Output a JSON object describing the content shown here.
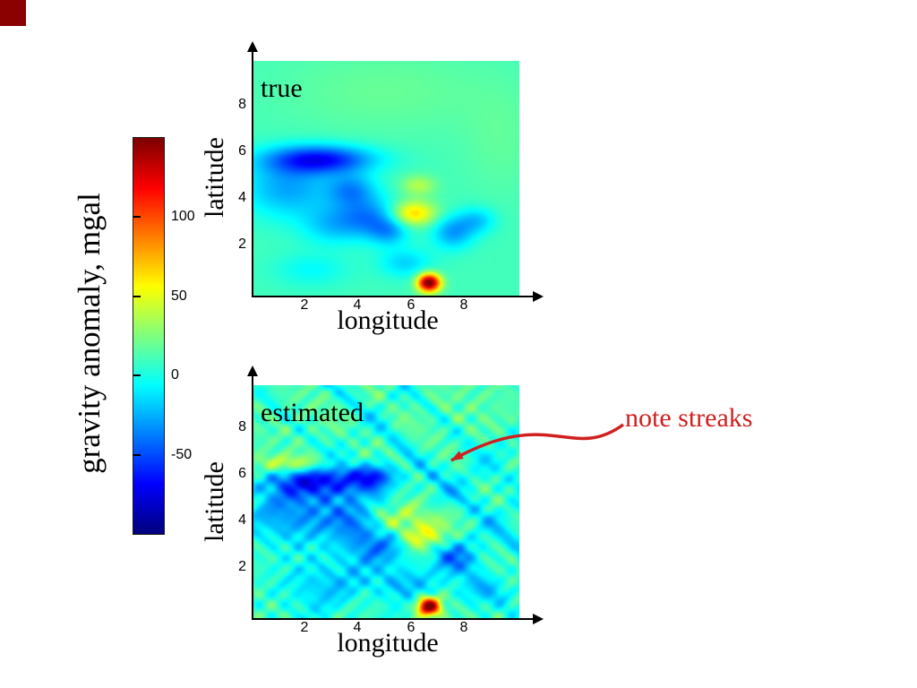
{
  "slide": {
    "background_color": "#ffffff",
    "corner_square_color": "#8b0000"
  },
  "colorbar": {
    "label": "gravity anomaly, mgal",
    "colormap": "jet",
    "value_range": [
      -100,
      150
    ],
    "ticks": [
      "100",
      "50",
      "0",
      "-50"
    ]
  },
  "annotation": {
    "text": "note streaks",
    "color": "#d01f1f"
  },
  "chart_data": [
    {
      "type": "heatmap",
      "title": "true",
      "xlabel": "longitude",
      "ylabel": "latitude",
      "xlim": [
        0,
        10
      ],
      "ylim": [
        0,
        10
      ],
      "xticks": [
        2,
        4,
        6,
        8
      ],
      "yticks": [
        2,
        4,
        6,
        8
      ],
      "colormap": "jet",
      "value_range": [
        -100,
        150
      ],
      "units": "mgal",
      "background_value": 10,
      "blobs": [
        {
          "x": 2.5,
          "y": 5.8,
          "sx": 1.4,
          "sy": 0.42,
          "amp": -75
        },
        {
          "x": 1.3,
          "y": 4.6,
          "sx": 1.2,
          "sy": 0.9,
          "amp": -38
        },
        {
          "x": 3.7,
          "y": 4.5,
          "sx": 0.65,
          "sy": 0.5,
          "amp": -40
        },
        {
          "x": 4.4,
          "y": 3.3,
          "sx": 0.85,
          "sy": 0.6,
          "amp": -45
        },
        {
          "x": 2.9,
          "y": 3.0,
          "sx": 0.8,
          "sy": 0.6,
          "amp": -25
        },
        {
          "x": 6.0,
          "y": 3.5,
          "sx": 0.6,
          "sy": 0.38,
          "amp": 60
        },
        {
          "x": 6.2,
          "y": 4.7,
          "sx": 0.45,
          "sy": 0.3,
          "amp": 28
        },
        {
          "x": 5.1,
          "y": 2.7,
          "sx": 0.5,
          "sy": 0.4,
          "amp": -28
        },
        {
          "x": 7.5,
          "y": 2.7,
          "sx": 0.55,
          "sy": 0.5,
          "amp": -40
        },
        {
          "x": 8.4,
          "y": 3.2,
          "sx": 0.5,
          "sy": 0.4,
          "amp": -28
        },
        {
          "x": 5.7,
          "y": 1.4,
          "sx": 0.7,
          "sy": 0.45,
          "amp": -26
        },
        {
          "x": 2.2,
          "y": 1.1,
          "sx": 1.0,
          "sy": 0.5,
          "amp": -16
        },
        {
          "x": 6.6,
          "y": 0.55,
          "sx": 0.3,
          "sy": 0.27,
          "amp": 150
        },
        {
          "x": 5.0,
          "y": 8.7,
          "sx": 3.0,
          "sy": 1.3,
          "amp": 9
        },
        {
          "x": 9.3,
          "y": 6.5,
          "sx": 1.0,
          "sy": 1.6,
          "amp": 7
        }
      ],
      "streaks": {
        "enabled": false
      }
    },
    {
      "type": "heatmap",
      "title": "estimated",
      "xlabel": "longitude",
      "ylabel": "latitude",
      "xlim": [
        0,
        10
      ],
      "ylim": [
        0,
        10
      ],
      "xticks": [
        2,
        4,
        6,
        8
      ],
      "yticks": [
        2,
        4,
        6,
        8
      ],
      "colormap": "jet",
      "value_range": [
        -100,
        150
      ],
      "units": "mgal",
      "background_value": 10,
      "blobs": [
        {
          "x": 2.6,
          "y": 5.9,
          "sx": 1.5,
          "sy": 0.5,
          "amp": -70
        },
        {
          "x": 4.6,
          "y": 6.1,
          "sx": 0.5,
          "sy": 0.35,
          "amp": -45
        },
        {
          "x": 1.6,
          "y": 4.4,
          "sx": 1.2,
          "sy": 0.9,
          "amp": -40
        },
        {
          "x": 3.8,
          "y": 4.3,
          "sx": 0.8,
          "sy": 0.6,
          "amp": -45
        },
        {
          "x": 4.6,
          "y": 3.1,
          "sx": 0.9,
          "sy": 0.6,
          "amp": -40
        },
        {
          "x": 1.5,
          "y": 6.6,
          "sx": 1.1,
          "sy": 0.28,
          "amp": 45
        },
        {
          "x": 5.5,
          "y": 4.3,
          "sx": 1.0,
          "sy": 0.45,
          "amp": 40
        },
        {
          "x": 6.3,
          "y": 3.5,
          "sx": 0.6,
          "sy": 0.4,
          "amp": 55
        },
        {
          "x": 7.6,
          "y": 2.6,
          "sx": 0.6,
          "sy": 0.5,
          "amp": -40
        },
        {
          "x": 5.6,
          "y": 1.5,
          "sx": 0.8,
          "sy": 0.5,
          "amp": -30
        },
        {
          "x": 2.5,
          "y": 1.5,
          "sx": 1.2,
          "sy": 0.8,
          "amp": -25
        },
        {
          "x": 8.6,
          "y": 1.2,
          "sx": 0.7,
          "sy": 0.5,
          "amp": -25
        },
        {
          "x": 6.6,
          "y": 0.5,
          "sx": 0.3,
          "sy": 0.27,
          "amp": 150
        },
        {
          "x": 5.0,
          "y": 8.8,
          "sx": 3.0,
          "sy": 1.2,
          "amp": 8
        }
      ],
      "streaks": {
        "enabled": true,
        "wavelength": 1.0,
        "amp": 10,
        "strong": [
          {
            "sum": 13.0,
            "amp": -30,
            "width": 0.22
          },
          {
            "sum": 10.0,
            "amp": -15,
            "width": 0.2
          },
          {
            "sum": 15.5,
            "amp": -18,
            "width": 0.22
          },
          {
            "diff": -4.0,
            "amp": -14,
            "width": 0.2
          },
          {
            "diff": 2.0,
            "amp": -15,
            "width": 0.22
          },
          {
            "diff": 5.0,
            "amp": -12,
            "width": 0.2
          }
        ]
      }
    }
  ]
}
